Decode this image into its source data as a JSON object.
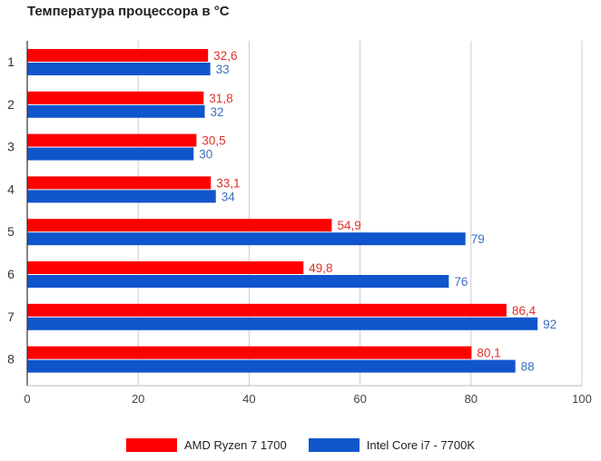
{
  "chart_data": {
    "type": "bar",
    "orientation": "horizontal",
    "title": "Температура процессора в °C",
    "xlabel": "",
    "ylabel": "",
    "categories": [
      "1",
      "2",
      "3",
      "4",
      "5",
      "6",
      "7",
      "8"
    ],
    "series": [
      {
        "name": "AMD Ryzen 7 1700",
        "color": "#ff0000",
        "values": [
          32.6,
          31.8,
          30.5,
          33.1,
          54.9,
          49.8,
          86.4,
          80.1
        ],
        "value_labels": [
          "32,6",
          "31,8",
          "30,5",
          "33,1",
          "54,9",
          "49,8",
          "86,4",
          "80,1"
        ],
        "label_color": "#e0302a"
      },
      {
        "name": "Intel Core i7 - 7700K",
        "color": "#1155cc",
        "values": [
          33,
          32,
          30,
          34,
          79,
          76,
          92,
          88
        ],
        "value_labels": [
          "33",
          "32",
          "30",
          "34",
          "79",
          "76",
          "92",
          "88"
        ],
        "label_color": "#3d6fbf"
      }
    ],
    "xlim": [
      0,
      100
    ],
    "x_ticks": [
      "0",
      "20",
      "40",
      "60",
      "80",
      "100"
    ],
    "grid": true,
    "legend": "bottom"
  }
}
